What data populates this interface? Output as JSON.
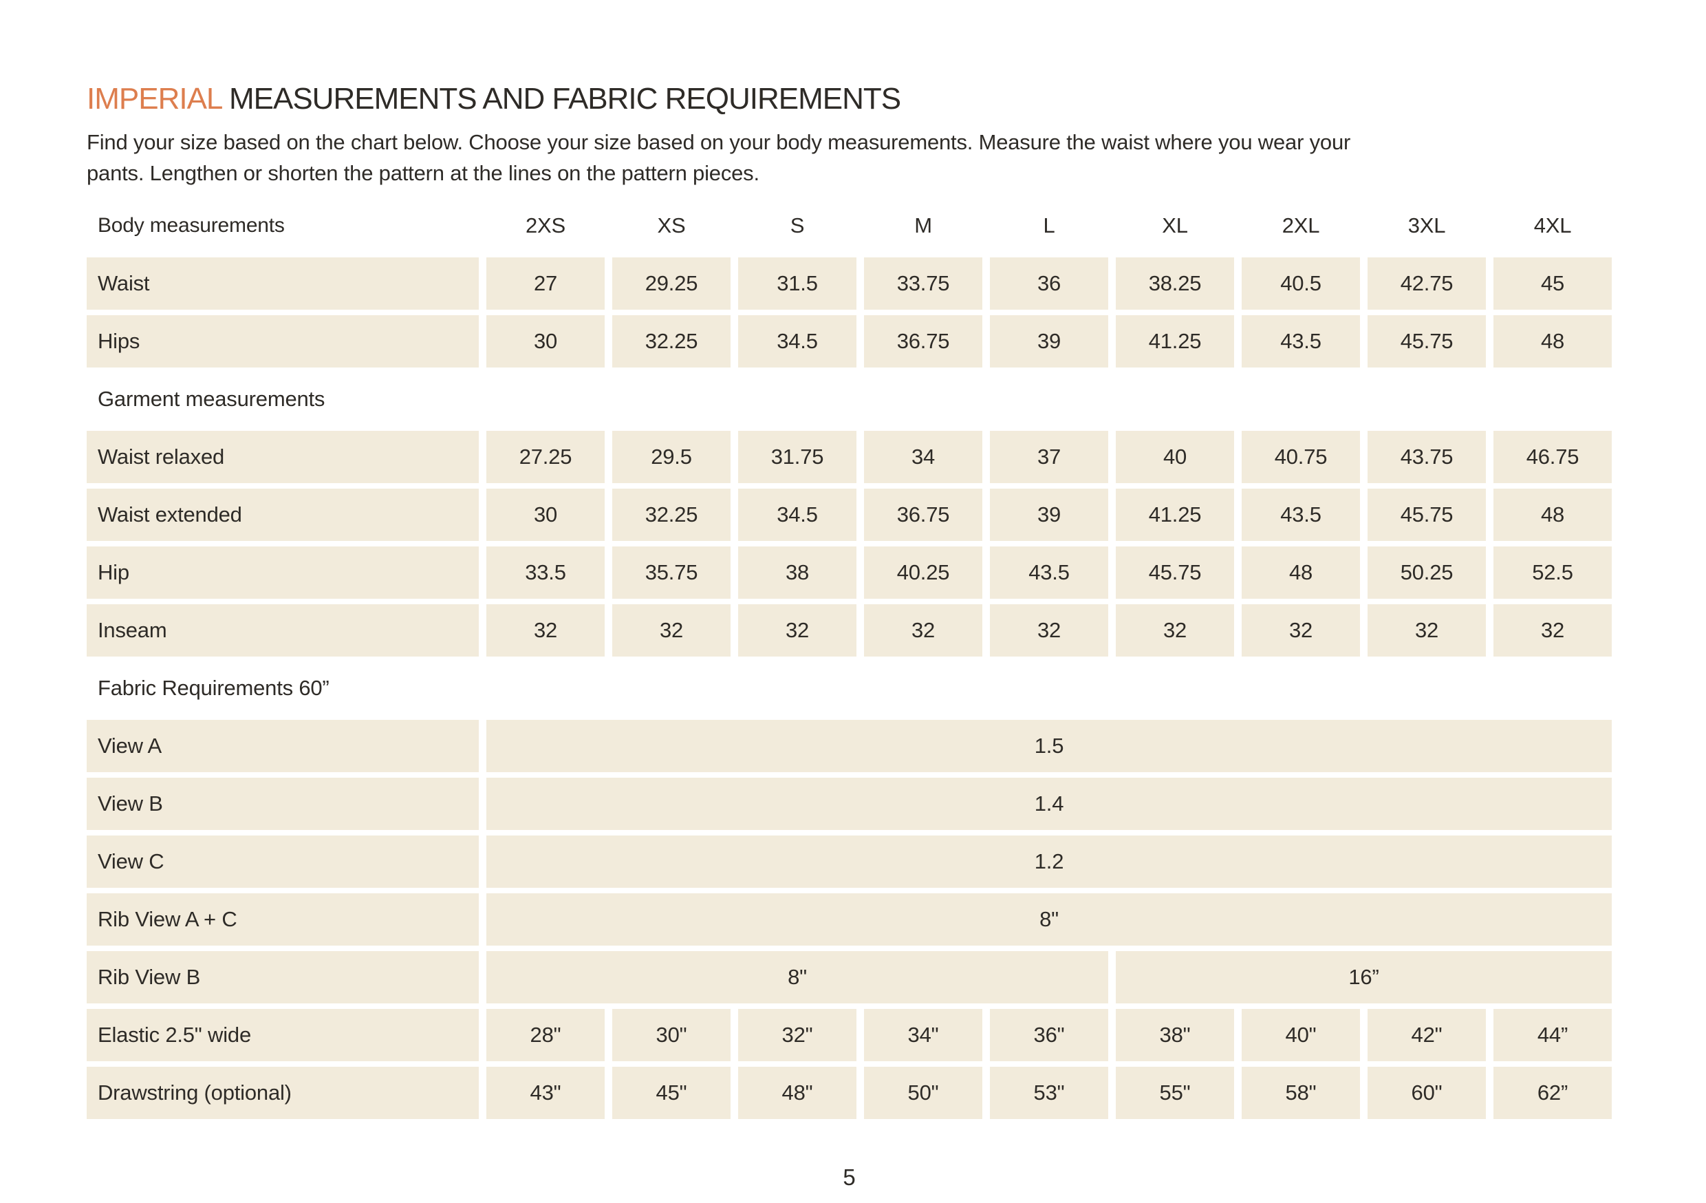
{
  "colors": {
    "accent_orange": "#dd7e4e",
    "cell_background": "#f2ebdb",
    "text": "#2e2b27"
  },
  "page": {
    "title_highlight": "IMPERIAL",
    "title_rest": " MEASUREMENTS AND FABRIC REQUIREMENTS",
    "intro_line1": "Find your size based on the chart below. Choose your size based on your body measurements. Measure the waist where you wear your",
    "intro_line2": "pants. Lengthen or shorten the pattern at the lines on the pattern pieces.",
    "page_number": "5"
  },
  "table": {
    "header_label": "Body measurements",
    "sizes": [
      "2XS",
      "XS",
      "S",
      "M",
      "L",
      "XL",
      "2XL",
      "3XL",
      "4XL"
    ],
    "body_rows": [
      {
        "label": "Waist",
        "values": [
          "27",
          "29.25",
          "31.5",
          "33.75",
          "36",
          "38.25",
          "40.5",
          "42.75",
          "45"
        ]
      },
      {
        "label": "Hips",
        "values": [
          "30",
          "32.25",
          "34.5",
          "36.75",
          "39",
          "41.25",
          "43.5",
          "45.75",
          "48"
        ]
      }
    ],
    "garment_heading": "Garment measurements",
    "garment_rows": [
      {
        "label": "Waist relaxed",
        "values": [
          "27.25",
          "29.5",
          "31.75",
          "34",
          "37",
          "40",
          "40.75",
          "43.75",
          "46.75"
        ]
      },
      {
        "label": "Waist extended",
        "values": [
          "30",
          "32.25",
          "34.5",
          "36.75",
          "39",
          "41.25",
          "43.5",
          "45.75",
          "48"
        ]
      },
      {
        "label": "Hip",
        "values": [
          "33.5",
          "35.75",
          "38",
          "40.25",
          "43.5",
          "45.75",
          "48",
          "50.25",
          "52.5"
        ]
      },
      {
        "label": "Inseam",
        "values": [
          "32",
          "32",
          "32",
          "32",
          "32",
          "32",
          "32",
          "32",
          "32"
        ]
      }
    ],
    "fabric_heading": "Fabric Requirements 60”",
    "fabric_span_rows": [
      {
        "label": "View A",
        "value": "1.5"
      },
      {
        "label": "View B",
        "value": "1.4"
      },
      {
        "label": "View C",
        "value": "1.2"
      },
      {
        "label": "Rib View A + C",
        "value": "8\""
      }
    ],
    "rib_view_b": {
      "label": "Rib View B",
      "left_value": "8\"",
      "left_span": 5,
      "right_value": "16”",
      "right_span": 4
    },
    "fabric_value_rows": [
      {
        "label": "Elastic 2.5\" wide",
        "values": [
          "28\"",
          "30\"",
          "32\"",
          "34\"",
          "36\"",
          "38\"",
          "40\"",
          "42\"",
          "44”"
        ]
      },
      {
        "label": "Drawstring (optional)",
        "values": [
          "43\"",
          "45\"",
          "48\"",
          "50\"",
          "53\"",
          "55\"",
          "58\"",
          "60\"",
          "62”"
        ]
      }
    ]
  }
}
